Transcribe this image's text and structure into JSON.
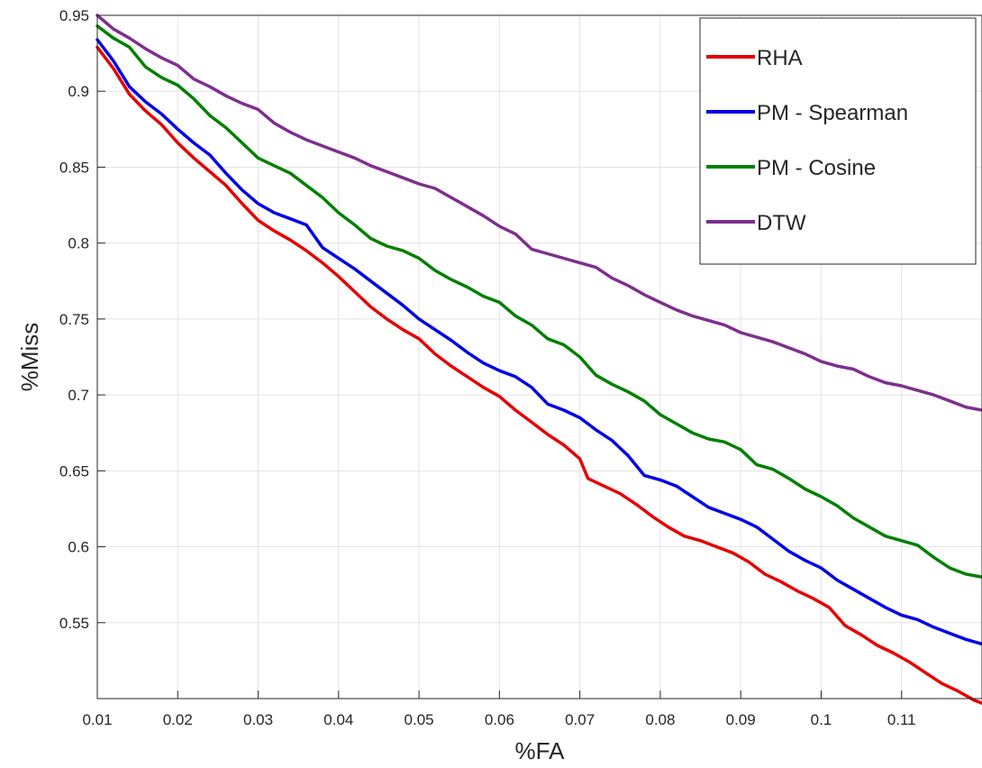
{
  "chart_data": {
    "type": "line",
    "title": "",
    "xlabel": "%FA",
    "ylabel": "%Miss",
    "xlim": [
      0.01,
      0.12
    ],
    "ylim": [
      0.5,
      0.95
    ],
    "xticks": [
      "0.01",
      "0.02",
      "0.03",
      "0.04",
      "0.05",
      "0.06",
      "0.07",
      "0.08",
      "0.09",
      "0.1",
      "0.11"
    ],
    "yticks": [
      "0.55",
      "0.6",
      "0.65",
      "0.7",
      "0.75",
      "0.8",
      "0.85",
      "0.9",
      "0.95"
    ],
    "grid": true,
    "legend_position": "top-right",
    "series": [
      {
        "name": "RHA",
        "color": "#e60000",
        "points": [
          [
            0.01,
            0.929
          ],
          [
            0.012,
            0.915
          ],
          [
            0.014,
            0.898
          ],
          [
            0.016,
            0.887
          ],
          [
            0.018,
            0.878
          ],
          [
            0.02,
            0.866
          ],
          [
            0.022,
            0.856
          ],
          [
            0.024,
            0.847
          ],
          [
            0.026,
            0.838
          ],
          [
            0.028,
            0.826
          ],
          [
            0.03,
            0.815
          ],
          [
            0.032,
            0.808
          ],
          [
            0.034,
            0.802
          ],
          [
            0.036,
            0.795
          ],
          [
            0.038,
            0.787
          ],
          [
            0.04,
            0.778
          ],
          [
            0.042,
            0.768
          ],
          [
            0.044,
            0.758
          ],
          [
            0.046,
            0.75
          ],
          [
            0.048,
            0.743
          ],
          [
            0.05,
            0.737
          ],
          [
            0.052,
            0.727
          ],
          [
            0.054,
            0.719
          ],
          [
            0.056,
            0.712
          ],
          [
            0.058,
            0.705
          ],
          [
            0.06,
            0.699
          ],
          [
            0.062,
            0.69
          ],
          [
            0.064,
            0.682
          ],
          [
            0.066,
            0.674
          ],
          [
            0.068,
            0.667
          ],
          [
            0.07,
            0.658
          ],
          [
            0.071,
            0.645
          ],
          [
            0.073,
            0.64
          ],
          [
            0.075,
            0.635
          ],
          [
            0.077,
            0.628
          ],
          [
            0.079,
            0.62
          ],
          [
            0.081,
            0.613
          ],
          [
            0.083,
            0.607
          ],
          [
            0.085,
            0.604
          ],
          [
            0.087,
            0.6
          ],
          [
            0.089,
            0.596
          ],
          [
            0.091,
            0.59
          ],
          [
            0.093,
            0.582
          ],
          [
            0.095,
            0.577
          ],
          [
            0.097,
            0.571
          ],
          [
            0.099,
            0.566
          ],
          [
            0.101,
            0.56
          ],
          [
            0.103,
            0.548
          ],
          [
            0.105,
            0.542
          ],
          [
            0.107,
            0.535
          ],
          [
            0.109,
            0.53
          ],
          [
            0.111,
            0.524
          ],
          [
            0.113,
            0.517
          ],
          [
            0.115,
            0.51
          ],
          [
            0.117,
            0.505
          ],
          [
            0.119,
            0.499
          ],
          [
            0.12,
            0.497
          ]
        ]
      },
      {
        "name": "PM - Spearman",
        "color": "#0000e6",
        "points": [
          [
            0.01,
            0.934
          ],
          [
            0.012,
            0.92
          ],
          [
            0.014,
            0.903
          ],
          [
            0.016,
            0.893
          ],
          [
            0.018,
            0.885
          ],
          [
            0.02,
            0.875
          ],
          [
            0.022,
            0.866
          ],
          [
            0.024,
            0.858
          ],
          [
            0.026,
            0.846
          ],
          [
            0.028,
            0.835
          ],
          [
            0.03,
            0.826
          ],
          [
            0.032,
            0.82
          ],
          [
            0.034,
            0.816
          ],
          [
            0.036,
            0.812
          ],
          [
            0.038,
            0.797
          ],
          [
            0.04,
            0.79
          ],
          [
            0.042,
            0.783
          ],
          [
            0.044,
            0.775
          ],
          [
            0.046,
            0.767
          ],
          [
            0.048,
            0.759
          ],
          [
            0.05,
            0.75
          ],
          [
            0.052,
            0.743
          ],
          [
            0.054,
            0.736
          ],
          [
            0.056,
            0.728
          ],
          [
            0.058,
            0.721
          ],
          [
            0.06,
            0.716
          ],
          [
            0.062,
            0.712
          ],
          [
            0.064,
            0.705
          ],
          [
            0.066,
            0.694
          ],
          [
            0.068,
            0.69
          ],
          [
            0.07,
            0.685
          ],
          [
            0.072,
            0.677
          ],
          [
            0.074,
            0.67
          ],
          [
            0.076,
            0.66
          ],
          [
            0.078,
            0.647
          ],
          [
            0.08,
            0.644
          ],
          [
            0.082,
            0.64
          ],
          [
            0.084,
            0.633
          ],
          [
            0.086,
            0.626
          ],
          [
            0.088,
            0.622
          ],
          [
            0.09,
            0.618
          ],
          [
            0.092,
            0.613
          ],
          [
            0.094,
            0.605
          ],
          [
            0.096,
            0.597
          ],
          [
            0.098,
            0.591
          ],
          [
            0.1,
            0.586
          ],
          [
            0.102,
            0.578
          ],
          [
            0.104,
            0.572
          ],
          [
            0.106,
            0.566
          ],
          [
            0.108,
            0.56
          ],
          [
            0.11,
            0.555
          ],
          [
            0.112,
            0.552
          ],
          [
            0.114,
            0.547
          ],
          [
            0.116,
            0.543
          ],
          [
            0.118,
            0.539
          ],
          [
            0.12,
            0.536
          ]
        ]
      },
      {
        "name": "PM - Cosine",
        "color": "#008000",
        "points": [
          [
            0.01,
            0.943
          ],
          [
            0.012,
            0.935
          ],
          [
            0.014,
            0.929
          ],
          [
            0.016,
            0.916
          ],
          [
            0.018,
            0.909
          ],
          [
            0.02,
            0.904
          ],
          [
            0.022,
            0.895
          ],
          [
            0.024,
            0.884
          ],
          [
            0.026,
            0.876
          ],
          [
            0.028,
            0.866
          ],
          [
            0.03,
            0.856
          ],
          [
            0.032,
            0.851
          ],
          [
            0.034,
            0.846
          ],
          [
            0.036,
            0.838
          ],
          [
            0.038,
            0.83
          ],
          [
            0.04,
            0.82
          ],
          [
            0.042,
            0.812
          ],
          [
            0.044,
            0.803
          ],
          [
            0.046,
            0.798
          ],
          [
            0.048,
            0.795
          ],
          [
            0.05,
            0.79
          ],
          [
            0.052,
            0.782
          ],
          [
            0.054,
            0.776
          ],
          [
            0.056,
            0.771
          ],
          [
            0.058,
            0.765
          ],
          [
            0.06,
            0.761
          ],
          [
            0.062,
            0.752
          ],
          [
            0.064,
            0.746
          ],
          [
            0.066,
            0.737
          ],
          [
            0.068,
            0.733
          ],
          [
            0.07,
            0.725
          ],
          [
            0.072,
            0.713
          ],
          [
            0.074,
            0.707
          ],
          [
            0.076,
            0.702
          ],
          [
            0.078,
            0.696
          ],
          [
            0.08,
            0.687
          ],
          [
            0.082,
            0.681
          ],
          [
            0.084,
            0.675
          ],
          [
            0.086,
            0.671
          ],
          [
            0.088,
            0.669
          ],
          [
            0.09,
            0.664
          ],
          [
            0.092,
            0.654
          ],
          [
            0.094,
            0.651
          ],
          [
            0.096,
            0.645
          ],
          [
            0.098,
            0.638
          ],
          [
            0.1,
            0.633
          ],
          [
            0.102,
            0.627
          ],
          [
            0.104,
            0.619
          ],
          [
            0.106,
            0.613
          ],
          [
            0.108,
            0.607
          ],
          [
            0.11,
            0.604
          ],
          [
            0.112,
            0.601
          ],
          [
            0.114,
            0.593
          ],
          [
            0.116,
            0.586
          ],
          [
            0.118,
            0.582
          ],
          [
            0.12,
            0.58
          ]
        ]
      },
      {
        "name": "DTW",
        "color": "#7e2f8e",
        "points": [
          [
            0.01,
            0.95
          ],
          [
            0.012,
            0.941
          ],
          [
            0.014,
            0.935
          ],
          [
            0.016,
            0.928
          ],
          [
            0.018,
            0.922
          ],
          [
            0.02,
            0.917
          ],
          [
            0.022,
            0.908
          ],
          [
            0.024,
            0.903
          ],
          [
            0.026,
            0.897
          ],
          [
            0.028,
            0.892
          ],
          [
            0.03,
            0.888
          ],
          [
            0.032,
            0.879
          ],
          [
            0.034,
            0.873
          ],
          [
            0.036,
            0.868
          ],
          [
            0.038,
            0.864
          ],
          [
            0.04,
            0.86
          ],
          [
            0.042,
            0.856
          ],
          [
            0.044,
            0.851
          ],
          [
            0.046,
            0.847
          ],
          [
            0.048,
            0.843
          ],
          [
            0.05,
            0.839
          ],
          [
            0.052,
            0.836
          ],
          [
            0.054,
            0.83
          ],
          [
            0.056,
            0.824
          ],
          [
            0.058,
            0.818
          ],
          [
            0.06,
            0.811
          ],
          [
            0.062,
            0.806
          ],
          [
            0.064,
            0.796
          ],
          [
            0.066,
            0.793
          ],
          [
            0.068,
            0.79
          ],
          [
            0.07,
            0.787
          ],
          [
            0.072,
            0.784
          ],
          [
            0.074,
            0.777
          ],
          [
            0.076,
            0.772
          ],
          [
            0.078,
            0.766
          ],
          [
            0.08,
            0.761
          ],
          [
            0.082,
            0.756
          ],
          [
            0.084,
            0.752
          ],
          [
            0.086,
            0.749
          ],
          [
            0.088,
            0.746
          ],
          [
            0.09,
            0.741
          ],
          [
            0.092,
            0.738
          ],
          [
            0.094,
            0.735
          ],
          [
            0.096,
            0.731
          ],
          [
            0.098,
            0.727
          ],
          [
            0.1,
            0.722
          ],
          [
            0.102,
            0.719
          ],
          [
            0.104,
            0.717
          ],
          [
            0.106,
            0.712
          ],
          [
            0.108,
            0.708
          ],
          [
            0.11,
            0.706
          ],
          [
            0.112,
            0.703
          ],
          [
            0.114,
            0.7
          ],
          [
            0.116,
            0.696
          ],
          [
            0.118,
            0.692
          ],
          [
            0.12,
            0.69
          ]
        ]
      }
    ]
  }
}
